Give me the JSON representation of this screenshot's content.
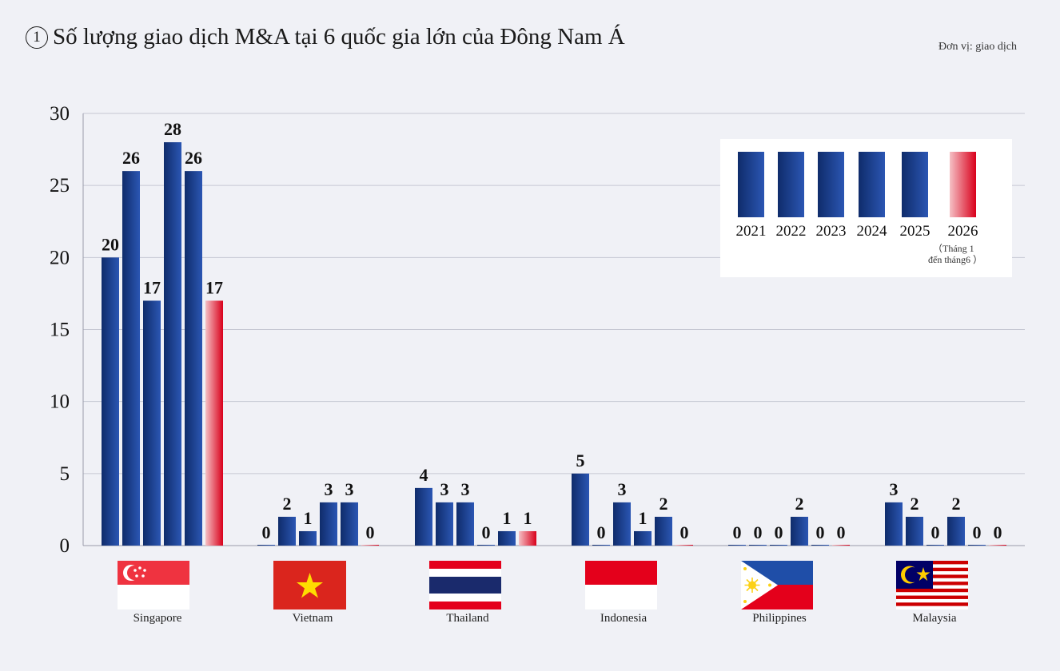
{
  "title": {
    "circle": "1",
    "text": "Số lượng giao dịch M&A tại 6 quốc gia lớn của Đông Nam Á"
  },
  "unit_label": "Đơn vị: giao dịch",
  "legend_note": [
    "（Tháng 1",
    "đến tháng6 ）"
  ],
  "colors": {
    "bar_dark": "#0f2c6b",
    "bar_light": "#2b56b3",
    "bar_red_light": "#f5c0c5",
    "bar_red": "#d9001b",
    "grid": "#c6c8d3",
    "axis_text": "#111111"
  },
  "countries": [
    {
      "name": "Singapore",
      "flag": "singapore-flag"
    },
    {
      "name": "Vietnam",
      "flag": "vietnam-flag"
    },
    {
      "name": "Thailand",
      "flag": "thailand-flag"
    },
    {
      "name": "Indonesia",
      "flag": "indonesia-flag"
    },
    {
      "name": "Philippines",
      "flag": "philippines-flag"
    },
    {
      "name": "Malaysia",
      "flag": "malaysia-flag"
    }
  ],
  "chart_data": {
    "type": "bar",
    "title": "Số lượng giao dịch M&A tại 6 quốc gia lớn của Đông Nam Á",
    "ylabel": "",
    "xlabel": "",
    "ylim": [
      0,
      30
    ],
    "yticks": [
      0,
      5,
      10,
      15,
      20,
      25,
      30
    ],
    "grid": true,
    "legend_position": "top-right",
    "categories": [
      "Singapore",
      "Vietnam",
      "Thailand",
      "Indonesia",
      "Philippines",
      "Malaysia"
    ],
    "series": [
      {
        "name": "2021",
        "values": [
          20,
          0,
          4,
          5,
          0,
          3
        ]
      },
      {
        "name": "2022",
        "values": [
          26,
          2,
          3,
          0,
          0,
          2
        ]
      },
      {
        "name": "2023",
        "values": [
          17,
          1,
          3,
          3,
          0,
          0
        ]
      },
      {
        "name": "2024",
        "values": [
          28,
          3,
          0,
          1,
          2,
          2
        ]
      },
      {
        "name": "2025",
        "values": [
          26,
          3,
          1,
          2,
          0,
          0
        ]
      },
      {
        "name": "2026",
        "values": [
          17,
          0,
          1,
          0,
          0,
          0
        ]
      }
    ]
  }
}
